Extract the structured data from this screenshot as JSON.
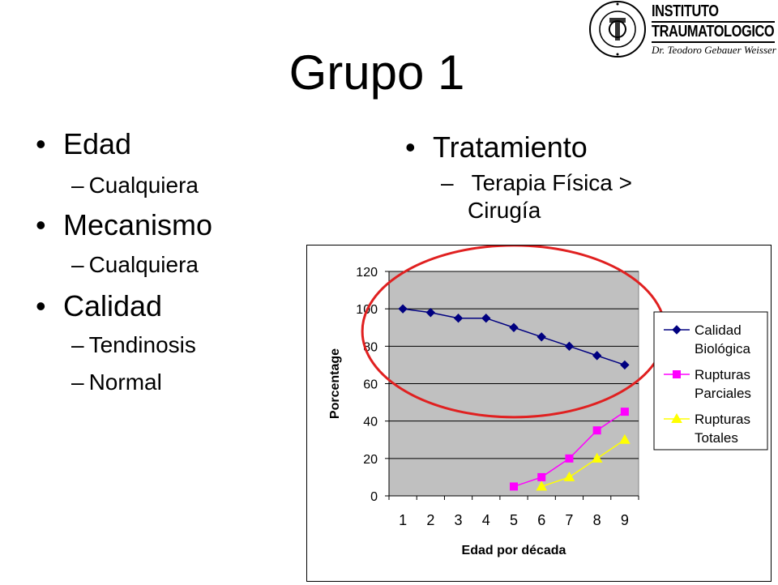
{
  "slide": {
    "title": "Grupo 1",
    "logo": {
      "line1": "INSTITUTO",
      "line2": "TRAUMATOLOGICO",
      "line3": "Dr. Teodoro Gebauer Weisser",
      "seal_text": "INSTITUTO TRAUMATOLOGICO"
    },
    "left_list": [
      {
        "heading": "Edad",
        "items": [
          "Cualquiera"
        ]
      },
      {
        "heading": "Mecanismo",
        "items": [
          "Cualquiera"
        ]
      },
      {
        "heading": "Calidad",
        "items": [
          "Tendinosis",
          "Normal"
        ]
      }
    ],
    "right_list": {
      "heading": "Tratamiento",
      "item_line1": "Terapia Física >",
      "item_line2": "Cirugía"
    },
    "bullet": "•",
    "dash": "–"
  },
  "chart_data": {
    "type": "line",
    "xlabel": "Edad por década",
    "ylabel": "Porcentage",
    "ylim": [
      0,
      120
    ],
    "yticks": [
      0,
      20,
      40,
      60,
      80,
      100,
      120
    ],
    "categories": [
      "1",
      "2",
      "3",
      "4",
      "5",
      "6",
      "7",
      "8",
      "9"
    ],
    "grid": true,
    "legend_position": "right",
    "series": [
      {
        "name": "Calidad Biológica",
        "legend_lines": [
          "Calidad",
          "Biológica"
        ],
        "color": "#000080",
        "marker": "diamond",
        "values": [
          100,
          98,
          95,
          95,
          90,
          85,
          80,
          75,
          70
        ]
      },
      {
        "name": "Rupturas Parciales",
        "legend_lines": [
          "Rupturas",
          "Parciales"
        ],
        "color": "#ff00ff",
        "marker": "square",
        "values": [
          null,
          null,
          null,
          null,
          5,
          10,
          20,
          35,
          45
        ]
      },
      {
        "name": "Rupturas Totales",
        "legend_lines": [
          "Rupturas",
          "Totales"
        ],
        "color": "#ffff00",
        "marker": "triangle",
        "values": [
          null,
          null,
          null,
          null,
          null,
          5,
          10,
          20,
          30
        ]
      }
    ],
    "annotation": {
      "shape": "ellipse",
      "color": "#e02020",
      "around_series": "Calidad Biológica"
    }
  }
}
